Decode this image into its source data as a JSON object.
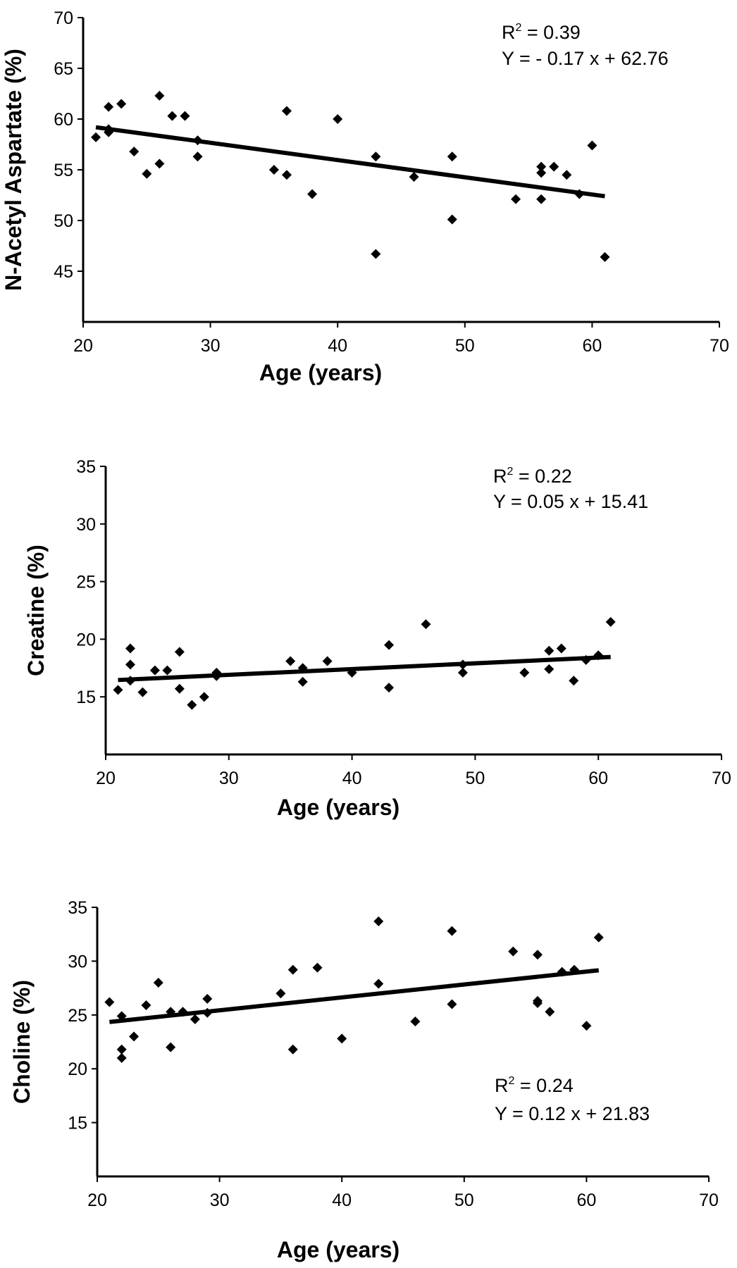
{
  "chart_data": [
    {
      "type": "scatter",
      "xlabel": "Age (years)",
      "ylabel": "N-Acetyl Aspartate (%)",
      "xlim": [
        20,
        70
      ],
      "ylim": [
        40,
        70
      ],
      "xticks": [
        20,
        30,
        40,
        50,
        60,
        70
      ],
      "yticks": [
        45,
        50,
        55,
        60,
        65,
        70
      ],
      "annotation_r2": "R",
      "annotation_r2_value": " = 0.39",
      "annotation_eq": "Y = - 0.17 x + 62.76",
      "annotation_position": "top-right",
      "trendline": {
        "slope": -0.17,
        "intercept": 62.76,
        "x_range": [
          21,
          61
        ]
      },
      "points": [
        [
          21,
          58.2
        ],
        [
          22,
          61.2
        ],
        [
          22,
          59.0
        ],
        [
          22,
          58.7
        ],
        [
          23,
          61.5
        ],
        [
          24,
          56.8
        ],
        [
          25,
          54.6
        ],
        [
          26,
          62.3
        ],
        [
          26,
          55.6
        ],
        [
          27,
          60.3
        ],
        [
          28,
          60.3
        ],
        [
          29,
          57.9
        ],
        [
          29,
          56.3
        ],
        [
          35,
          55.0
        ],
        [
          36,
          60.8
        ],
        [
          36,
          54.5
        ],
        [
          38,
          52.6
        ],
        [
          40,
          60.0
        ],
        [
          43,
          56.3
        ],
        [
          43,
          46.7
        ],
        [
          46,
          54.3
        ],
        [
          49,
          56.3
        ],
        [
          49,
          50.1
        ],
        [
          54,
          52.1
        ],
        [
          56,
          55.3
        ],
        [
          56,
          54.7
        ],
        [
          56,
          52.1
        ],
        [
          57,
          55.3
        ],
        [
          58,
          54.5
        ],
        [
          59,
          52.6
        ],
        [
          60,
          57.4
        ],
        [
          61,
          46.4
        ]
      ]
    },
    {
      "type": "scatter",
      "xlabel": "Age (years)",
      "ylabel": "Creatine (%)",
      "xlim": [
        20,
        70
      ],
      "ylim": [
        10,
        35
      ],
      "xticks": [
        20,
        30,
        40,
        50,
        60,
        70
      ],
      "yticks": [
        15,
        20,
        25,
        30,
        35
      ],
      "annotation_r2": "R",
      "annotation_r2_value": " = 0.22",
      "annotation_eq": "Y = 0.05 x + 15.41",
      "annotation_position": "top-right",
      "trendline": {
        "slope": 0.05,
        "intercept": 15.41,
        "x_range": [
          21,
          61
        ]
      },
      "points": [
        [
          21,
          15.6
        ],
        [
          22,
          19.2
        ],
        [
          22,
          17.8
        ],
        [
          22,
          16.4
        ],
        [
          23,
          15.4
        ],
        [
          24,
          17.3
        ],
        [
          25,
          17.3
        ],
        [
          26,
          18.9
        ],
        [
          26,
          15.7
        ],
        [
          27,
          14.3
        ],
        [
          28,
          15.0
        ],
        [
          29,
          17.1
        ],
        [
          29,
          16.8
        ],
        [
          35,
          18.1
        ],
        [
          36,
          17.5
        ],
        [
          36,
          16.3
        ],
        [
          38,
          18.1
        ],
        [
          40,
          17.1
        ],
        [
          43,
          19.5
        ],
        [
          43,
          15.8
        ],
        [
          46,
          21.3
        ],
        [
          49,
          17.8
        ],
        [
          49,
          17.1
        ],
        [
          54,
          17.1
        ],
        [
          56,
          19.0
        ],
        [
          56,
          17.4
        ],
        [
          57,
          19.2
        ],
        [
          58,
          16.4
        ],
        [
          59,
          18.2
        ],
        [
          60,
          18.6
        ],
        [
          61,
          21.5
        ]
      ]
    },
    {
      "type": "scatter",
      "xlabel": "Age (years)",
      "ylabel": "Choline (%)",
      "xlim": [
        20,
        70
      ],
      "ylim": [
        10,
        35
      ],
      "xticks": [
        20,
        30,
        40,
        50,
        60,
        70
      ],
      "yticks": [
        15,
        20,
        25,
        30,
        35
      ],
      "annotation_r2": "R",
      "annotation_r2_value": " = 0.24",
      "annotation_eq": "Y = 0.12 x + 21.83",
      "annotation_position": "bottom-right",
      "trendline": {
        "slope": 0.12,
        "intercept": 21.83,
        "x_range": [
          21,
          61
        ]
      },
      "points": [
        [
          21,
          26.2
        ],
        [
          22,
          24.9
        ],
        [
          22,
          21.8
        ],
        [
          22,
          21.0
        ],
        [
          23,
          23.0
        ],
        [
          24,
          25.9
        ],
        [
          25,
          28.0
        ],
        [
          26,
          25.3
        ],
        [
          26,
          22.0
        ],
        [
          27,
          25.3
        ],
        [
          28,
          24.6
        ],
        [
          29,
          26.5
        ],
        [
          29,
          25.2
        ],
        [
          35,
          27.0
        ],
        [
          36,
          29.2
        ],
        [
          36,
          21.8
        ],
        [
          38,
          29.4
        ],
        [
          40,
          22.8
        ],
        [
          43,
          33.7
        ],
        [
          43,
          27.9
        ],
        [
          46,
          24.4
        ],
        [
          49,
          32.8
        ],
        [
          49,
          26.0
        ],
        [
          54,
          30.9
        ],
        [
          56,
          30.6
        ],
        [
          56,
          26.3
        ],
        [
          56,
          26.1
        ],
        [
          57,
          25.3
        ],
        [
          58,
          29.0
        ],
        [
          59,
          29.2
        ],
        [
          60,
          24.0
        ],
        [
          61,
          32.2
        ]
      ]
    }
  ]
}
